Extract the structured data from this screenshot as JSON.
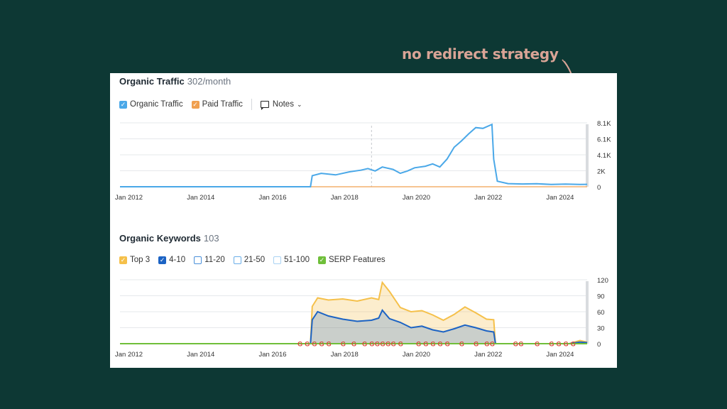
{
  "annotation": {
    "text": "no redirect strategy"
  },
  "colors": {
    "background": "#0d3834",
    "annotation": "#d9a496",
    "organic": "#4aa8e8",
    "paid": "#f0a050",
    "top3": "#f5c04a",
    "pos4_10": "#1c63c4",
    "serp": "#6fbf3a"
  },
  "traffic": {
    "title": "Organic Traffic",
    "value": "302/month",
    "legend": {
      "organic": "Organic Traffic",
      "paid": "Paid Traffic",
      "notes": "Notes"
    }
  },
  "keywords": {
    "title": "Organic Keywords",
    "value": "103",
    "legend": [
      "Top 3",
      "4-10",
      "11-20",
      "21-50",
      "51-100",
      "SERP Features"
    ]
  },
  "chart_data": [
    {
      "type": "line",
      "title": "Organic Traffic",
      "x_ticks": [
        "Jan 2012",
        "Jan 2014",
        "Jan 2016",
        "Jan 2018",
        "Jan 2020",
        "Jan 2022",
        "Jan 2024"
      ],
      "y_ticks": [
        "0",
        "2K",
        "4.1K",
        "6.1K",
        "8.1K"
      ],
      "ylim": [
        0,
        8100
      ],
      "xlim": [
        2012,
        2025.0
      ],
      "series": [
        {
          "name": "Organic Traffic",
          "x": [
            2012,
            2017.3,
            2017.35,
            2017.6,
            2018.0,
            2018.4,
            2018.7,
            2018.9,
            2019.1,
            2019.3,
            2019.6,
            2019.8,
            2020.0,
            2020.2,
            2020.5,
            2020.7,
            2020.9,
            2021.1,
            2021.3,
            2021.5,
            2021.7,
            2021.9,
            2022.1,
            2022.35,
            2022.4,
            2022.5,
            2022.8,
            2023.2,
            2023.6,
            2024.0,
            2024.4,
            2024.8,
            2025.0
          ],
          "y": [
            0,
            0,
            1400,
            1700,
            1500,
            1900,
            2100,
            2300,
            2000,
            2500,
            2200,
            1700,
            2000,
            2400,
            2600,
            2900,
            2500,
            3500,
            5000,
            5800,
            6700,
            7500,
            7400,
            7900,
            3500,
            700,
            400,
            350,
            380,
            300,
            330,
            300,
            302
          ]
        },
        {
          "name": "Paid Traffic",
          "x": [
            2012,
            2025.0
          ],
          "y": [
            0,
            0
          ]
        }
      ]
    },
    {
      "type": "area",
      "title": "Organic Keywords",
      "x_ticks": [
        "Jan 2012",
        "Jan 2014",
        "Jan 2016",
        "Jan 2018",
        "Jan 2020",
        "Jan 2022",
        "Jan 2024"
      ],
      "y_ticks": [
        "0",
        "30",
        "60",
        "90",
        "120"
      ],
      "ylim": [
        0,
        120
      ],
      "xlim": [
        2012,
        2025.0
      ],
      "series": [
        {
          "name": "Top 3",
          "x": [
            2012,
            2017.3,
            2017.35,
            2017.5,
            2017.8,
            2018.2,
            2018.6,
            2019.0,
            2019.2,
            2019.3,
            2019.5,
            2019.8,
            2020.1,
            2020.4,
            2020.7,
            2021.0,
            2021.3,
            2021.6,
            2021.9,
            2022.2,
            2022.4,
            2022.45,
            2022.8,
            2024.5,
            2024.8,
            2025.0
          ],
          "y": [
            0,
            0,
            70,
            86,
            82,
            84,
            80,
            86,
            83,
            115,
            98,
            68,
            60,
            62,
            54,
            44,
            55,
            69,
            58,
            46,
            45,
            0,
            0,
            0,
            6,
            3
          ]
        },
        {
          "name": "4-10",
          "x": [
            2012,
            2017.3,
            2017.35,
            2017.5,
            2017.8,
            2018.2,
            2018.6,
            2019.0,
            2019.2,
            2019.3,
            2019.5,
            2019.8,
            2020.1,
            2020.4,
            2020.7,
            2021.0,
            2021.3,
            2021.6,
            2021.9,
            2022.2,
            2022.4,
            2022.45,
            2022.8,
            2024.5,
            2024.8,
            2025.0
          ],
          "y": [
            0,
            0,
            45,
            60,
            52,
            46,
            42,
            44,
            48,
            63,
            47,
            40,
            30,
            33,
            26,
            22,
            28,
            35,
            30,
            24,
            22,
            0,
            0,
            0,
            3,
            2
          ]
        }
      ]
    }
  ]
}
